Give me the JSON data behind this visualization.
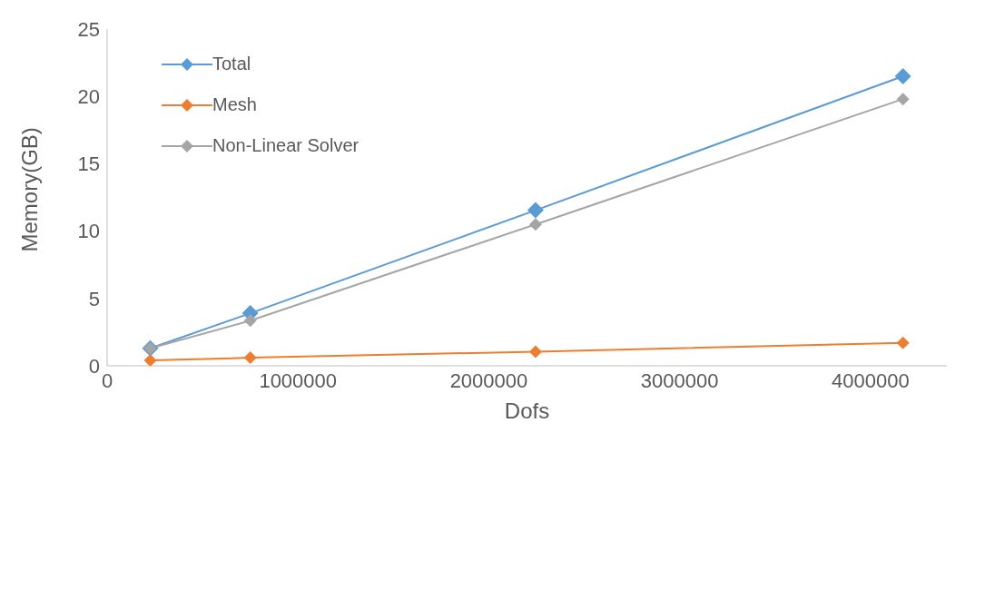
{
  "chart_data": {
    "type": "line",
    "xlabel": "Dofs",
    "ylabel": "Memory(GB)",
    "x": [
      226000,
      750000,
      2245000,
      4170000
    ],
    "series": [
      {
        "name": "Total",
        "color": "#5b9bd5",
        "values": [
          1.3,
          3.9,
          11.55,
          21.5
        ]
      },
      {
        "name": "Mesh",
        "color": "#ed7d31",
        "values": [
          0.4,
          0.6,
          1.05,
          1.7
        ]
      },
      {
        "name": "Non-Linear Solver",
        "color": "#a5a5a5",
        "values": [
          1.3,
          3.35,
          10.5,
          19.8
        ]
      }
    ],
    "xlim": [
      0,
      4400000
    ],
    "xticks": [
      0,
      1000000,
      2000000,
      3000000,
      4000000
    ],
    "ylim": [
      0,
      25
    ],
    "yticks": [
      0,
      5,
      10,
      15,
      20,
      25
    ],
    "grid": false,
    "legend": "top left",
    "marker": "diamond"
  }
}
